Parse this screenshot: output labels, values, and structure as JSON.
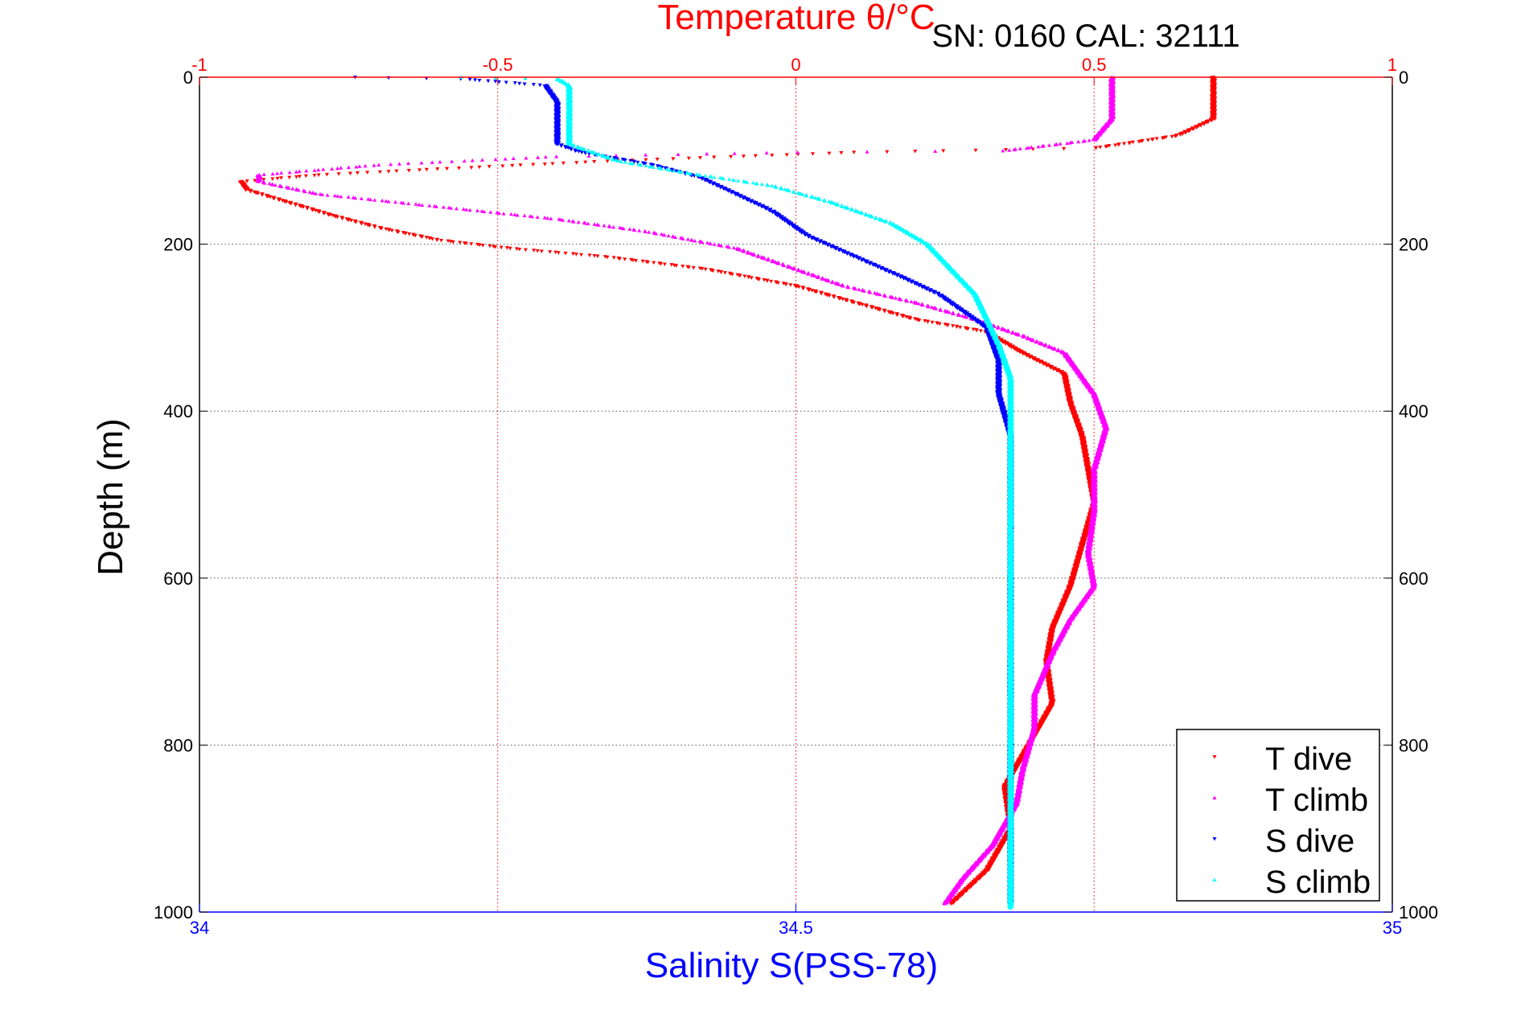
{
  "chart_data": {
    "type": "scatter",
    "title": "Temperature θ/°C",
    "annotation": "SN: 0160  CAL: 32111",
    "xlabel": "Salinity S(PSS-78)",
    "ylabel": "Depth (m)",
    "x_axis_bottom": {
      "label": "Salinity S(PSS-78)",
      "range": [
        34,
        35
      ],
      "ticks": [
        34,
        34.5,
        35
      ],
      "tick_labels": [
        "34",
        "34.5",
        "35"
      ],
      "color": "#0000ff"
    },
    "x_axis_top": {
      "label": "Temperature θ/°C",
      "range": [
        -1,
        1
      ],
      "ticks": [
        -1,
        -0.5,
        0,
        0.5,
        1
      ],
      "tick_labels": [
        "-1",
        "-0.5",
        "0",
        "0.5",
        "1"
      ],
      "color": "#ff0000"
    },
    "y_axis": {
      "label": "Depth (m)",
      "range": [
        0,
        1000
      ],
      "reversed": true,
      "ticks": [
        0,
        200,
        400,
        600,
        800,
        1000
      ],
      "tick_labels": [
        "0",
        "200",
        "400",
        "600",
        "800",
        "1000"
      ]
    },
    "grid": true,
    "legend_position": "bottom-right",
    "series": [
      {
        "name": "T dive",
        "axis": "top",
        "color": "#ff0000",
        "marker": "triangle-down",
        "points": [
          [
            0.7,
            0
          ],
          [
            0.7,
            20
          ],
          [
            0.7,
            50
          ],
          [
            0.64,
            70
          ],
          [
            0.5,
            85
          ],
          [
            0.1,
            90
          ],
          [
            -0.3,
            100
          ],
          [
            -0.6,
            110
          ],
          [
            -0.8,
            117
          ],
          [
            -0.93,
            125
          ],
          [
            -0.92,
            135
          ],
          [
            -0.85,
            150
          ],
          [
            -0.78,
            165
          ],
          [
            -0.7,
            180
          ],
          [
            -0.6,
            195
          ],
          [
            -0.48,
            205
          ],
          [
            -0.32,
            215
          ],
          [
            -0.15,
            230
          ],
          [
            0.0,
            250
          ],
          [
            0.1,
            270
          ],
          [
            0.2,
            290
          ],
          [
            0.32,
            305
          ],
          [
            0.38,
            330
          ],
          [
            0.45,
            355
          ],
          [
            0.46,
            390
          ],
          [
            0.48,
            430
          ],
          [
            0.49,
            470
          ],
          [
            0.5,
            510
          ],
          [
            0.48,
            560
          ],
          [
            0.46,
            610
          ],
          [
            0.43,
            660
          ],
          [
            0.42,
            700
          ],
          [
            0.43,
            750
          ],
          [
            0.39,
            800
          ],
          [
            0.35,
            850
          ],
          [
            0.36,
            900
          ],
          [
            0.32,
            950
          ],
          [
            0.26,
            990
          ]
        ]
      },
      {
        "name": "T climb",
        "axis": "top",
        "color": "#ff00ff",
        "marker": "triangle-up",
        "points": [
          [
            0.53,
            0
          ],
          [
            0.53,
            20
          ],
          [
            0.53,
            50
          ],
          [
            0.5,
            75
          ],
          [
            0.35,
            88
          ],
          [
            0.0,
            90
          ],
          [
            -0.4,
            95
          ],
          [
            -0.7,
            105
          ],
          [
            -0.9,
            117
          ],
          [
            -0.9,
            125
          ],
          [
            -0.8,
            140
          ],
          [
            -0.6,
            155
          ],
          [
            -0.4,
            170
          ],
          [
            -0.25,
            185
          ],
          [
            -0.1,
            205
          ],
          [
            -0.02,
            225
          ],
          [
            0.08,
            250
          ],
          [
            0.2,
            270
          ],
          [
            0.3,
            290
          ],
          [
            0.38,
            310
          ],
          [
            0.45,
            330
          ],
          [
            0.48,
            360
          ],
          [
            0.5,
            380
          ],
          [
            0.52,
            420
          ],
          [
            0.5,
            470
          ],
          [
            0.5,
            520
          ],
          [
            0.49,
            570
          ],
          [
            0.5,
            610
          ],
          [
            0.46,
            650
          ],
          [
            0.43,
            690
          ],
          [
            0.4,
            740
          ],
          [
            0.4,
            780
          ],
          [
            0.38,
            830
          ],
          [
            0.37,
            870
          ],
          [
            0.33,
            920
          ],
          [
            0.28,
            960
          ],
          [
            0.25,
            990
          ]
        ]
      },
      {
        "name": "S dive",
        "axis": "bottom",
        "color": "#0000ff",
        "marker": "triangle-down",
        "points": [
          [
            34.13,
            0
          ],
          [
            34.22,
            2
          ],
          [
            34.29,
            10
          ],
          [
            34.3,
            30
          ],
          [
            34.3,
            70
          ],
          [
            34.3,
            80
          ],
          [
            34.32,
            90
          ],
          [
            34.38,
            105
          ],
          [
            34.42,
            120
          ],
          [
            34.45,
            140
          ],
          [
            34.48,
            160
          ],
          [
            34.51,
            190
          ],
          [
            34.55,
            215
          ],
          [
            34.59,
            240
          ],
          [
            34.62,
            260
          ],
          [
            34.64,
            280
          ],
          [
            34.66,
            300
          ],
          [
            34.67,
            340
          ],
          [
            34.67,
            380
          ],
          [
            34.68,
            430
          ],
          [
            34.68,
            480
          ],
          [
            34.68,
            540
          ],
          [
            34.68,
            600
          ],
          [
            34.68,
            700
          ],
          [
            34.68,
            800
          ],
          [
            34.68,
            900
          ],
          [
            34.68,
            990
          ]
        ]
      },
      {
        "name": "S climb",
        "axis": "bottom",
        "color": "#00ffff",
        "marker": "triangle-up",
        "points": [
          [
            34.22,
            0
          ],
          [
            34.3,
            2
          ],
          [
            34.31,
            10
          ],
          [
            34.31,
            40
          ],
          [
            34.31,
            80
          ],
          [
            34.35,
            100
          ],
          [
            34.41,
            115
          ],
          [
            34.48,
            130
          ],
          [
            34.53,
            150
          ],
          [
            34.58,
            175
          ],
          [
            34.61,
            200
          ],
          [
            34.63,
            230
          ],
          [
            34.65,
            260
          ],
          [
            34.66,
            290
          ],
          [
            34.67,
            320
          ],
          [
            34.68,
            360
          ],
          [
            34.68,
            400
          ],
          [
            34.68,
            460
          ],
          [
            34.68,
            540
          ],
          [
            34.68,
            640
          ],
          [
            34.68,
            740
          ],
          [
            34.68,
            840
          ],
          [
            34.68,
            940
          ],
          [
            34.68,
            995
          ]
        ]
      }
    ]
  }
}
